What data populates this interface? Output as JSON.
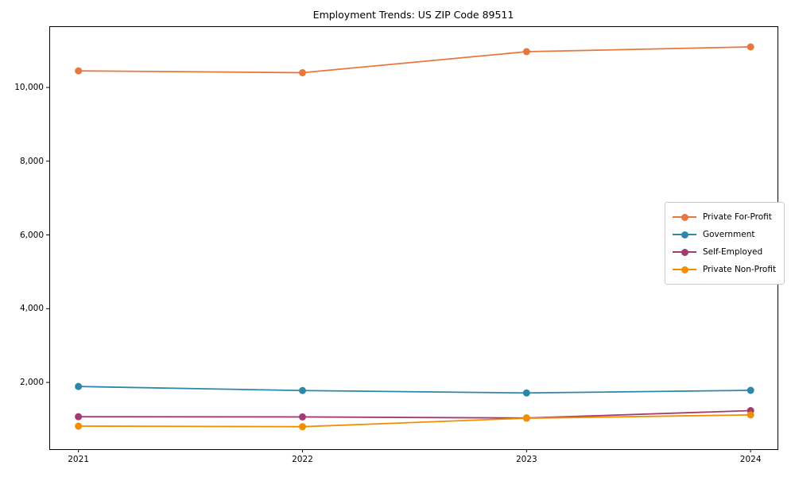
{
  "chart_data": {
    "type": "line",
    "title": "Employment Trends: US ZIP Code 89511",
    "x": [
      2021,
      2022,
      2023,
      2024
    ],
    "xtick_labels": [
      "2021",
      "2022",
      "2023",
      "2024"
    ],
    "series": [
      {
        "name": "Private For-Profit",
        "color": "#E8773D",
        "values": [
          10450,
          10400,
          10970,
          11100
        ]
      },
      {
        "name": "Government",
        "color": "#2E86AB",
        "values": [
          1890,
          1780,
          1715,
          1785
        ]
      },
      {
        "name": "Self-Employed",
        "color": "#A23B72",
        "values": [
          1070,
          1065,
          1035,
          1235
        ]
      },
      {
        "name": "Private Non-Profit",
        "color": "#F18F01",
        "values": [
          815,
          800,
          1030,
          1120
        ]
      }
    ],
    "yticks": [
      2000,
      4000,
      6000,
      8000,
      10000
    ],
    "ytick_labels": [
      "2,000",
      "4,000",
      "6,000",
      "8,000",
      "10,000"
    ],
    "ylim": [
      190,
      11660
    ],
    "xlim": [
      2020.87,
      2024.12
    ],
    "grid": false,
    "marker": "o",
    "legend_position": "center right",
    "axis_color": "#000000"
  }
}
